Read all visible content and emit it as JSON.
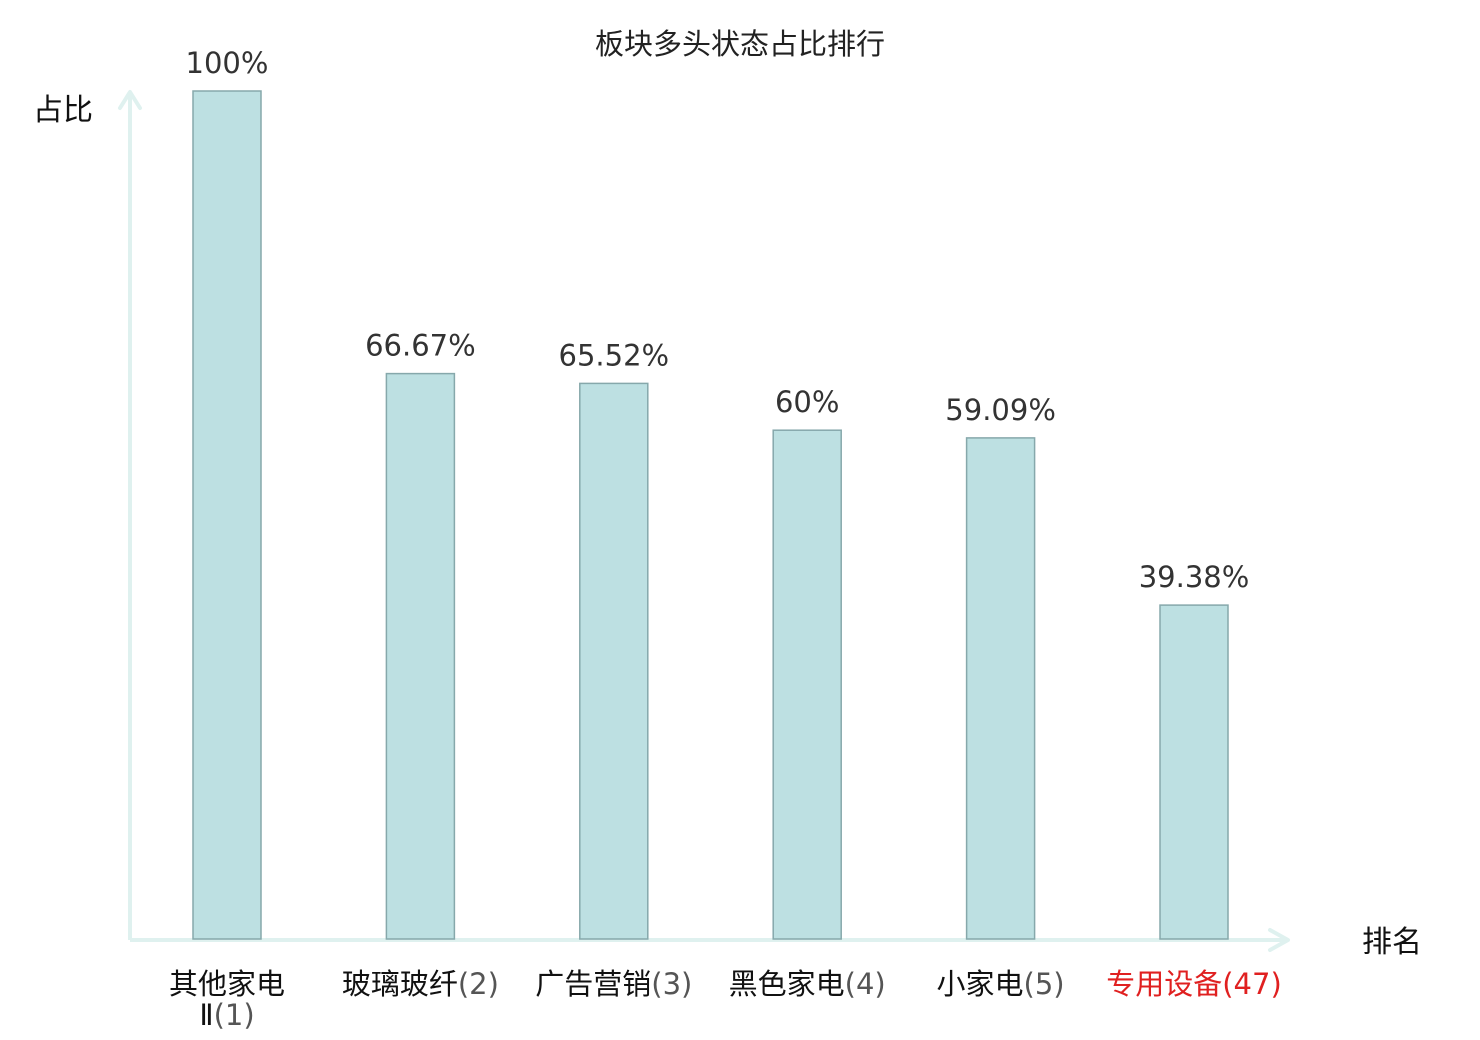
{
  "chart_data": {
    "type": "bar",
    "title": "板块多头状态占比排行",
    "ylabel": "占比",
    "xlabel": "排名",
    "ylim": [
      0,
      100
    ],
    "grid": false,
    "categories": [
      {
        "name": "其他家电Ⅱ",
        "rank": "(1)",
        "highlight": false
      },
      {
        "name": "玻璃玻纤",
        "rank": "(2)",
        "highlight": false
      },
      {
        "name": "广告营销",
        "rank": "(3)",
        "highlight": false
      },
      {
        "name": "黑色家电",
        "rank": "(4)",
        "highlight": false
      },
      {
        "name": "小家电",
        "rank": "(5)",
        "highlight": false
      },
      {
        "name": "专用设备",
        "rank": "(47)",
        "highlight": true
      }
    ],
    "values": [
      100,
      66.67,
      65.52,
      60,
      59.09,
      39.38
    ],
    "value_labels": [
      "100%",
      "66.67%",
      "65.52%",
      "60%",
      "59.09%",
      "39.38%"
    ]
  },
  "colors": {
    "bar_fill": "#bde0e2",
    "bar_stroke": "#86a8ab",
    "axis": "#dff1ef",
    "label_normal": "#111111",
    "rank_normal": "#555555",
    "label_highlight": "#e02020"
  }
}
